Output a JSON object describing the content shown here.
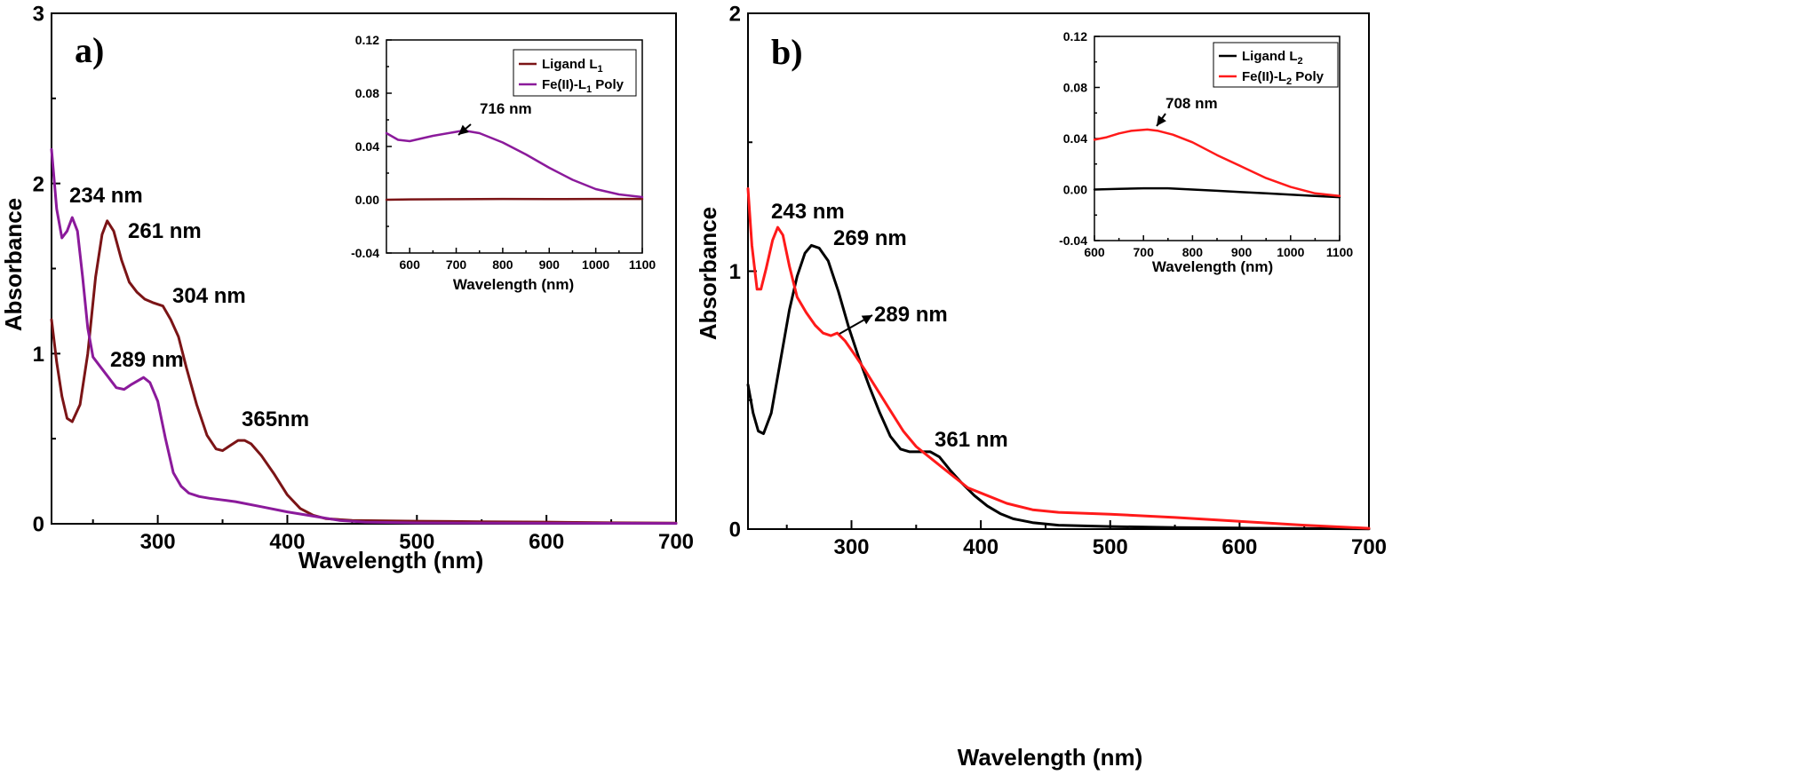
{
  "chart_data": [
    {
      "type": "line",
      "panel_label": "a)",
      "xlabel": "Wavelength (nm)",
      "ylabel": "Absorbance",
      "xlim": [
        218,
        700
      ],
      "ylim": [
        0,
        3
      ],
      "x_ticks": [
        300,
        400,
        500,
        600,
        700
      ],
      "y_ticks": [
        0,
        1,
        2,
        3
      ],
      "grid": false,
      "series": [
        {
          "name": "Ligand L1",
          "color": "#7b1416",
          "points": [
            [
              218,
              1.2
            ],
            [
              222,
              0.95
            ],
            [
              226,
              0.75
            ],
            [
              230,
              0.62
            ],
            [
              234,
              0.6
            ],
            [
              240,
              0.7
            ],
            [
              246,
              1.0
            ],
            [
              252,
              1.45
            ],
            [
              257,
              1.7
            ],
            [
              261,
              1.78
            ],
            [
              266,
              1.72
            ],
            [
              272,
              1.55
            ],
            [
              278,
              1.42
            ],
            [
              284,
              1.36
            ],
            [
              290,
              1.32
            ],
            [
              296,
              1.3
            ],
            [
              304,
              1.28
            ],
            [
              310,
              1.2
            ],
            [
              316,
              1.1
            ],
            [
              322,
              0.92
            ],
            [
              330,
              0.7
            ],
            [
              338,
              0.52
            ],
            [
              345,
              0.44
            ],
            [
              350,
              0.43
            ],
            [
              356,
              0.46
            ],
            [
              362,
              0.49
            ],
            [
              367,
              0.49
            ],
            [
              372,
              0.47
            ],
            [
              380,
              0.4
            ],
            [
              390,
              0.29
            ],
            [
              400,
              0.17
            ],
            [
              410,
              0.09
            ],
            [
              420,
              0.05
            ],
            [
              430,
              0.03
            ],
            [
              450,
              0.02
            ],
            [
              500,
              0.015
            ],
            [
              550,
              0.012
            ],
            [
              600,
              0.01
            ],
            [
              650,
              0.006
            ],
            [
              700,
              0.004
            ]
          ]
        },
        {
          "name": "Fe(II)-L1 Poly",
          "color": "#8b1a9b",
          "points": [
            [
              218,
              2.2
            ],
            [
              222,
              1.85
            ],
            [
              226,
              1.68
            ],
            [
              230,
              1.72
            ],
            [
              234,
              1.8
            ],
            [
              238,
              1.72
            ],
            [
              242,
              1.45
            ],
            [
              246,
              1.15
            ],
            [
              250,
              0.98
            ],
            [
              256,
              0.92
            ],
            [
              262,
              0.86
            ],
            [
              268,
              0.8
            ],
            [
              274,
              0.79
            ],
            [
              280,
              0.82
            ],
            [
              289,
              0.86
            ],
            [
              294,
              0.83
            ],
            [
              300,
              0.72
            ],
            [
              306,
              0.5
            ],
            [
              312,
              0.3
            ],
            [
              318,
              0.22
            ],
            [
              324,
              0.18
            ],
            [
              332,
              0.16
            ],
            [
              340,
              0.15
            ],
            [
              350,
              0.14
            ],
            [
              360,
              0.13
            ],
            [
              380,
              0.1
            ],
            [
              400,
              0.07
            ],
            [
              420,
              0.045
            ],
            [
              440,
              0.02
            ],
            [
              460,
              0.01
            ],
            [
              500,
              0.005
            ],
            [
              600,
              0.003
            ],
            [
              700,
              0.002
            ]
          ]
        }
      ],
      "annotations": [
        "234 nm",
        "261 nm",
        "304 nm",
        "289 nm",
        "365nm"
      ],
      "inset": {
        "xlabel": "Wavelength (nm)",
        "xlim": [
          550,
          1100
        ],
        "ylim": [
          -0.04,
          0.12
        ],
        "x_ticks": [
          600,
          700,
          800,
          900,
          1000,
          1100
        ],
        "y_ticks": [
          "-0.04",
          "0.00",
          "0.04",
          "0.08",
          "0.12"
        ],
        "legend_position": "top-right",
        "legend": [
          {
            "main": "Ligand L",
            "sub": "1",
            "tail": "",
            "color": "#7b1416"
          },
          {
            "main": "Fe(II)-L",
            "sub": "1",
            "tail": " Poly",
            "color": "#8b1a9b"
          }
        ],
        "series": [
          {
            "name": "Ligand L1",
            "color": "#7b1416",
            "points": [
              [
                550,
                0.0
              ],
              [
                600,
                0.0003
              ],
              [
                700,
                0.0004
              ],
              [
                800,
                0.0006
              ],
              [
                900,
                0.0005
              ],
              [
                1000,
                0.0006
              ],
              [
                1100,
                0.0006
              ]
            ]
          },
          {
            "name": "Fe(II)-L1 Poly",
            "color": "#8b1a9b",
            "points": [
              [
                550,
                0.05
              ],
              [
                575,
                0.045
              ],
              [
                600,
                0.044
              ],
              [
                650,
                0.048
              ],
              [
                700,
                0.051
              ],
              [
                716,
                0.052
              ],
              [
                750,
                0.05
              ],
              [
                800,
                0.043
              ],
              [
                850,
                0.034
              ],
              [
                900,
                0.024
              ],
              [
                950,
                0.015
              ],
              [
                1000,
                0.008
              ],
              [
                1050,
                0.004
              ],
              [
                1100,
                0.002
              ]
            ]
          }
        ],
        "annotation": "716 nm"
      }
    },
    {
      "type": "line",
      "panel_label": "b)",
      "xlabel": "Wavelength (nm)",
      "ylabel": "Absorbance",
      "xlim": [
        220,
        700
      ],
      "ylim": [
        0,
        2
      ],
      "x_ticks": [
        300,
        400,
        500,
        600,
        700
      ],
      "y_ticks": [
        0,
        1,
        2
      ],
      "grid": false,
      "series": [
        {
          "name": "Ligand L2",
          "color": "#000000",
          "points": [
            [
              220,
              0.56
            ],
            [
              224,
              0.45
            ],
            [
              228,
              0.38
            ],
            [
              232,
              0.37
            ],
            [
              238,
              0.45
            ],
            [
              245,
              0.65
            ],
            [
              252,
              0.85
            ],
            [
              258,
              0.98
            ],
            [
              264,
              1.07
            ],
            [
              269,
              1.1
            ],
            [
              275,
              1.09
            ],
            [
              282,
              1.04
            ],
            [
              290,
              0.92
            ],
            [
              298,
              0.78
            ],
            [
              306,
              0.66
            ],
            [
              314,
              0.55
            ],
            [
              322,
              0.45
            ],
            [
              330,
              0.36
            ],
            [
              338,
              0.31
            ],
            [
              345,
              0.3
            ],
            [
              355,
              0.3
            ],
            [
              361,
              0.3
            ],
            [
              368,
              0.28
            ],
            [
              376,
              0.23
            ],
            [
              385,
              0.18
            ],
            [
              395,
              0.13
            ],
            [
              405,
              0.09
            ],
            [
              415,
              0.06
            ],
            [
              425,
              0.04
            ],
            [
              440,
              0.025
            ],
            [
              460,
              0.015
            ],
            [
              500,
              0.01
            ],
            [
              550,
              0.006
            ],
            [
              600,
              0.004
            ],
            [
              650,
              0.002
            ],
            [
              700,
              0.001
            ]
          ]
        },
        {
          "name": "Fe(II)-L2 Poly",
          "color": "#ff1a1a",
          "points": [
            [
              220,
              1.32
            ],
            [
              223,
              1.1
            ],
            [
              227,
              0.93
            ],
            [
              230,
              0.93
            ],
            [
              234,
              1.01
            ],
            [
              239,
              1.12
            ],
            [
              243,
              1.17
            ],
            [
              247,
              1.14
            ],
            [
              252,
              1.02
            ],
            [
              258,
              0.9
            ],
            [
              265,
              0.84
            ],
            [
              272,
              0.79
            ],
            [
              278,
              0.76
            ],
            [
              284,
              0.75
            ],
            [
              289,
              0.76
            ],
            [
              295,
              0.73
            ],
            [
              302,
              0.68
            ],
            [
              310,
              0.62
            ],
            [
              320,
              0.54
            ],
            [
              330,
              0.46
            ],
            [
              340,
              0.38
            ],
            [
              350,
              0.32
            ],
            [
              360,
              0.28
            ],
            [
              370,
              0.24
            ],
            [
              380,
              0.2
            ],
            [
              390,
              0.16
            ],
            [
              400,
              0.14
            ],
            [
              420,
              0.1
            ],
            [
              440,
              0.075
            ],
            [
              460,
              0.065
            ],
            [
              500,
              0.058
            ],
            [
              550,
              0.045
            ],
            [
              600,
              0.03
            ],
            [
              650,
              0.015
            ],
            [
              700,
              0.003
            ]
          ]
        }
      ],
      "annotations": [
        "243 nm",
        "269 nm",
        "289 nm",
        "361 nm"
      ],
      "inset": {
        "xlabel": "Wavelength (nm)",
        "xlim": [
          600,
          1100
        ],
        "ylim": [
          -0.04,
          0.12
        ],
        "x_ticks": [
          600,
          700,
          800,
          900,
          1000,
          1100
        ],
        "y_ticks": [
          "-0.04",
          "0.00",
          "0.04",
          "0.08",
          "0.12"
        ],
        "legend_position": "top-right",
        "legend": [
          {
            "main": "Ligand L",
            "sub": "2",
            "tail": "",
            "color": "#000000"
          },
          {
            "main": "Fe(II)-L",
            "sub": "2",
            "tail": " Poly",
            "color": "#ff1a1a"
          }
        ],
        "series": [
          {
            "name": "Ligand L2",
            "color": "#000000",
            "points": [
              [
                600,
                0.0
              ],
              [
                650,
                0.0005
              ],
              [
                700,
                0.001
              ],
              [
                750,
                0.001
              ],
              [
                800,
                0.0
              ],
              [
                850,
                -0.001
              ],
              [
                900,
                -0.002
              ],
              [
                950,
                -0.003
              ],
              [
                1000,
                -0.004
              ],
              [
                1050,
                -0.005
              ],
              [
                1100,
                -0.006
              ]
            ]
          },
          {
            "name": "Fe(II)-L2 Poly",
            "color": "#ff1a1a",
            "points": [
              [
                600,
                0.039
              ],
              [
                625,
                0.041
              ],
              [
                650,
                0.044
              ],
              [
                675,
                0.046
              ],
              [
                708,
                0.047
              ],
              [
                730,
                0.046
              ],
              [
                760,
                0.043
              ],
              [
                800,
                0.037
              ],
              [
                850,
                0.027
              ],
              [
                900,
                0.018
              ],
              [
                950,
                0.009
              ],
              [
                1000,
                0.002
              ],
              [
                1050,
                -0.003
              ],
              [
                1100,
                -0.005
              ]
            ]
          }
        ],
        "annotation": "708 nm"
      }
    }
  ]
}
